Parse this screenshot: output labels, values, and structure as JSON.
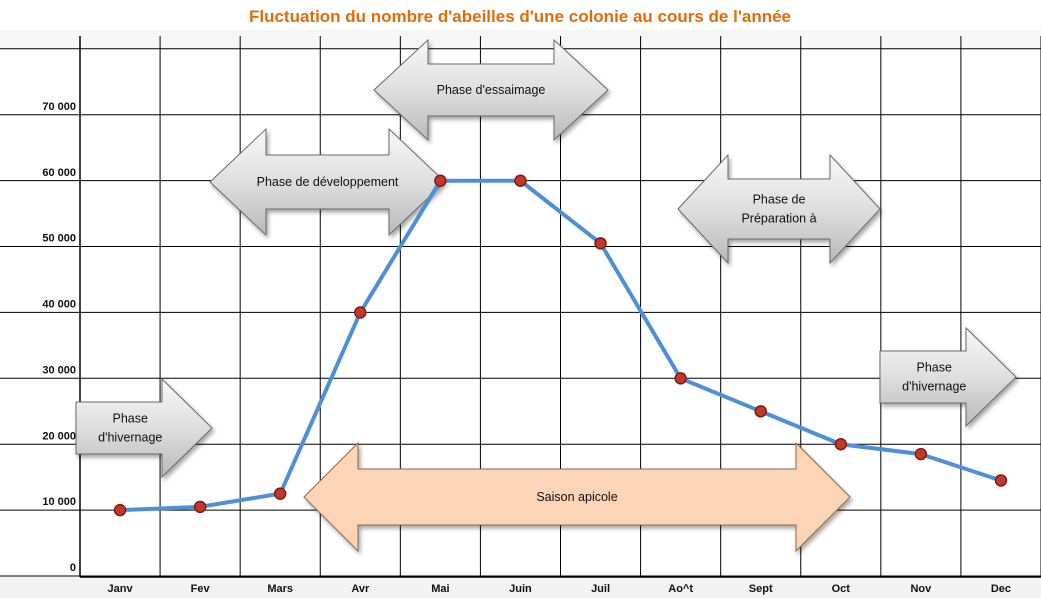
{
  "chart_data": {
    "type": "line",
    "title": "Fluctuation du nombre d'abeilles d'une colonie au cours de l'année",
    "xlabel": "",
    "ylabel": "",
    "categories": [
      "Janv",
      "Fev",
      "Mars",
      "Avr",
      "Mai",
      "Juin",
      "Juil",
      "Ao^t",
      "Sept",
      "Oct",
      "Nov",
      "Dec"
    ],
    "series": [
      {
        "values": [
          10000,
          10500,
          12500,
          40000,
          60000,
          60000,
          50500,
          30000,
          25000,
          20000,
          18500,
          14500
        ]
      }
    ],
    "ylim": [
      0,
      80000
    ],
    "y_ticks": [
      "0",
      "10 000",
      "20 000",
      "30 000",
      "40 000",
      "50 000",
      "60 000",
      "70 000"
    ],
    "grid": true,
    "colors": {
      "title": "#e36c0a",
      "line": "#4f8fd8",
      "marker": "#c0392b",
      "grid": "#000000",
      "band": "#e4e4e4",
      "saison_fill": "#fbd5b5"
    },
    "annotations": [
      {
        "id": "essaimage",
        "label": "Phase d'essaimage",
        "lines": [
          "Phase d'essaimage"
        ],
        "shape": "double-arrow",
        "from": "Avr",
        "to": "Juil"
      },
      {
        "id": "developpement",
        "label": "Phase de développement",
        "lines": [
          "Phase de développement"
        ],
        "shape": "double-arrow",
        "from": "Fev",
        "to": "Mai"
      },
      {
        "id": "preparation",
        "label": "Phase de Préparation à",
        "lines": [
          "Phase de",
          "Préparation à"
        ],
        "shape": "double-arrow",
        "from": "Ao^t",
        "to": "Oct"
      },
      {
        "id": "hivernage_debut",
        "label": "Phase d'hivernage",
        "lines": [
          "Phase",
          "d'hivernage"
        ],
        "shape": "right-arrow",
        "from": "Janv",
        "to": "Fev"
      },
      {
        "id": "hivernage_fin",
        "label": "Phase d'hivernage",
        "lines": [
          "Phase",
          "d'hivernage"
        ],
        "shape": "right-arrow",
        "from": "Nov",
        "to": "Dec"
      },
      {
        "id": "saison",
        "label": "Saison apicole",
        "lines": [
          "Saison apicole"
        ],
        "shape": "double-arrow",
        "from": "Mars",
        "to": "Oct"
      }
    ]
  }
}
